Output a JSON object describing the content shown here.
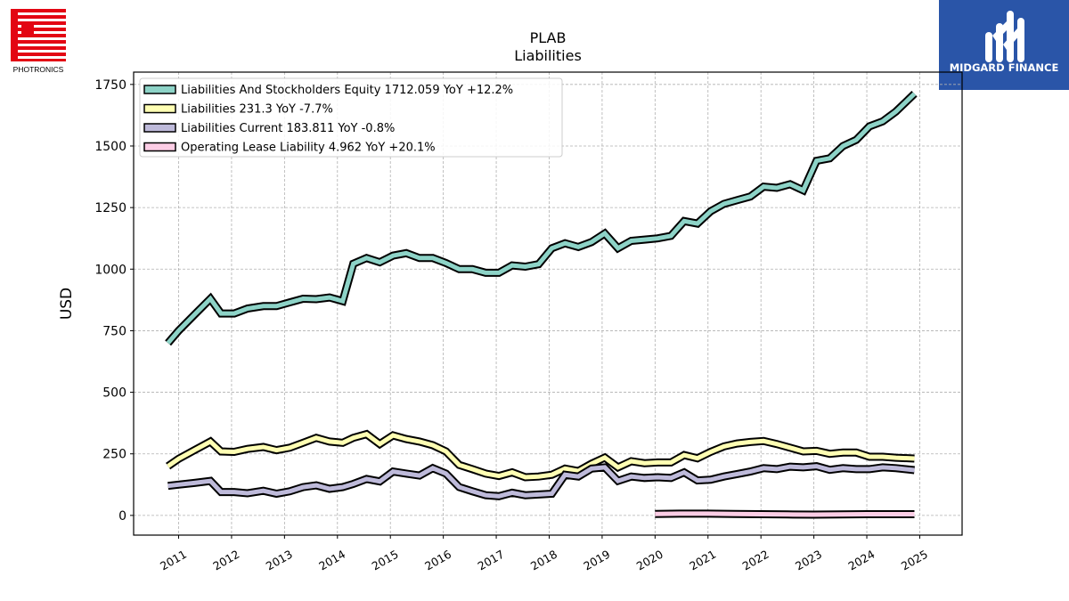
{
  "logos": {
    "left_text": "PHOTRONICS",
    "right_text": "MIDGARD FINANCE"
  },
  "chart_data": {
    "type": "line",
    "title": "PLAB",
    "subtitle": "Liabilities",
    "xlabel": "",
    "ylabel": "USD",
    "ylim": [
      -80,
      1800
    ],
    "xlim": [
      2010.15,
      2025.8
    ],
    "yticks": [
      0,
      250,
      500,
      750,
      1000,
      1250,
      1500,
      1750
    ],
    "xticks": [
      "2011",
      "2012",
      "2013",
      "2014",
      "2015",
      "2016",
      "2017",
      "2018",
      "2019",
      "2020",
      "2021",
      "2022",
      "2023",
      "2024",
      "2025"
    ],
    "grid": true,
    "legend_position": "top-left",
    "series": [
      {
        "name": "Liabilities And Stockholders Equity",
        "legend": "Liabilities And Stockholders Equity  1712.059 YoY +12.2%",
        "color": "#8dd3c7",
        "points": [
          [
            2010.8,
            700
          ],
          [
            2011.0,
            750
          ],
          [
            2011.3,
            815
          ],
          [
            2011.6,
            880
          ],
          [
            2011.8,
            820
          ],
          [
            2012.05,
            820
          ],
          [
            2012.3,
            840
          ],
          [
            2012.6,
            850
          ],
          [
            2012.85,
            850
          ],
          [
            2013.1,
            865
          ],
          [
            2013.35,
            880
          ],
          [
            2013.6,
            878
          ],
          [
            2013.85,
            885
          ],
          [
            2014.1,
            870
          ],
          [
            2014.3,
            1022
          ],
          [
            2014.55,
            1045
          ],
          [
            2014.8,
            1028
          ],
          [
            2015.05,
            1055
          ],
          [
            2015.3,
            1065
          ],
          [
            2015.55,
            1045
          ],
          [
            2015.8,
            1045
          ],
          [
            2016.05,
            1025
          ],
          [
            2016.3,
            1000
          ],
          [
            2016.55,
            1000
          ],
          [
            2016.8,
            985
          ],
          [
            2017.05,
            985
          ],
          [
            2017.3,
            1015
          ],
          [
            2017.55,
            1010
          ],
          [
            2017.8,
            1020
          ],
          [
            2018.05,
            1085
          ],
          [
            2018.3,
            1105
          ],
          [
            2018.55,
            1090
          ],
          [
            2018.8,
            1110
          ],
          [
            2019.05,
            1145
          ],
          [
            2019.3,
            1085
          ],
          [
            2019.55,
            1115
          ],
          [
            2019.8,
            1120
          ],
          [
            2020.05,
            1125
          ],
          [
            2020.3,
            1135
          ],
          [
            2020.55,
            1195
          ],
          [
            2020.8,
            1185
          ],
          [
            2021.05,
            1235
          ],
          [
            2021.3,
            1265
          ],
          [
            2021.55,
            1280
          ],
          [
            2021.8,
            1295
          ],
          [
            2022.05,
            1335
          ],
          [
            2022.3,
            1330
          ],
          [
            2022.55,
            1345
          ],
          [
            2022.8,
            1320
          ],
          [
            2023.05,
            1440
          ],
          [
            2023.3,
            1450
          ],
          [
            2023.55,
            1500
          ],
          [
            2023.8,
            1525
          ],
          [
            2024.05,
            1580
          ],
          [
            2024.3,
            1600
          ],
          [
            2024.55,
            1640
          ],
          [
            2024.9,
            1712
          ]
        ]
      },
      {
        "name": "Liabilities",
        "legend": "Liabilities  231.3 YoY -7.7%",
        "color": "#ffffb3",
        "points": [
          [
            2010.8,
            200
          ],
          [
            2011.0,
            230
          ],
          [
            2011.3,
            265
          ],
          [
            2011.6,
            300
          ],
          [
            2011.8,
            260
          ],
          [
            2012.05,
            258
          ],
          [
            2012.3,
            270
          ],
          [
            2012.6,
            278
          ],
          [
            2012.85,
            265
          ],
          [
            2013.1,
            275
          ],
          [
            2013.35,
            295
          ],
          [
            2013.6,
            315
          ],
          [
            2013.85,
            300
          ],
          [
            2014.1,
            295
          ],
          [
            2014.3,
            315
          ],
          [
            2014.55,
            330
          ],
          [
            2014.8,
            290
          ],
          [
            2015.05,
            325
          ],
          [
            2015.3,
            310
          ],
          [
            2015.55,
            300
          ],
          [
            2015.8,
            285
          ],
          [
            2016.05,
            260
          ],
          [
            2016.3,
            205
          ],
          [
            2016.55,
            188
          ],
          [
            2016.8,
            170
          ],
          [
            2017.05,
            160
          ],
          [
            2017.3,
            175
          ],
          [
            2017.55,
            155
          ],
          [
            2017.8,
            158
          ],
          [
            2018.05,
            165
          ],
          [
            2018.3,
            190
          ],
          [
            2018.55,
            180
          ],
          [
            2018.8,
            210
          ],
          [
            2019.05,
            235
          ],
          [
            2019.3,
            195
          ],
          [
            2019.55,
            220
          ],
          [
            2019.8,
            212
          ],
          [
            2020.05,
            215
          ],
          [
            2020.3,
            215
          ],
          [
            2020.55,
            245
          ],
          [
            2020.8,
            232
          ],
          [
            2021.05,
            258
          ],
          [
            2021.3,
            280
          ],
          [
            2021.55,
            292
          ],
          [
            2021.8,
            298
          ],
          [
            2022.05,
            302
          ],
          [
            2022.3,
            290
          ],
          [
            2022.55,
            275
          ],
          [
            2022.8,
            260
          ],
          [
            2023.05,
            262
          ],
          [
            2023.3,
            250
          ],
          [
            2023.55,
            255
          ],
          [
            2023.8,
            255
          ],
          [
            2024.05,
            238
          ],
          [
            2024.3,
            238
          ],
          [
            2024.55,
            234
          ],
          [
            2024.9,
            231
          ]
        ]
      },
      {
        "name": "Liabilities Current",
        "legend": "Liabilities Current  183.811 YoY -0.8%",
        "color": "#bebada",
        "points": [
          [
            2010.8,
            120
          ],
          [
            2011.0,
            125
          ],
          [
            2011.3,
            132
          ],
          [
            2011.6,
            140
          ],
          [
            2011.8,
            95
          ],
          [
            2012.05,
            95
          ],
          [
            2012.3,
            90
          ],
          [
            2012.6,
            100
          ],
          [
            2012.85,
            88
          ],
          [
            2013.1,
            98
          ],
          [
            2013.35,
            115
          ],
          [
            2013.6,
            122
          ],
          [
            2013.85,
            108
          ],
          [
            2014.1,
            115
          ],
          [
            2014.3,
            128
          ],
          [
            2014.55,
            148
          ],
          [
            2014.8,
            138
          ],
          [
            2015.05,
            178
          ],
          [
            2015.3,
            170
          ],
          [
            2015.55,
            162
          ],
          [
            2015.8,
            192
          ],
          [
            2016.05,
            170
          ],
          [
            2016.3,
            115
          ],
          [
            2016.55,
            98
          ],
          [
            2016.8,
            82
          ],
          [
            2017.05,
            78
          ],
          [
            2017.3,
            92
          ],
          [
            2017.55,
            82
          ],
          [
            2017.8,
            85
          ],
          [
            2018.05,
            88
          ],
          [
            2018.3,
            165
          ],
          [
            2018.55,
            158
          ],
          [
            2018.8,
            190
          ],
          [
            2019.05,
            195
          ],
          [
            2019.3,
            140
          ],
          [
            2019.55,
            158
          ],
          [
            2019.8,
            152
          ],
          [
            2020.05,
            155
          ],
          [
            2020.3,
            152
          ],
          [
            2020.55,
            175
          ],
          [
            2020.8,
            142
          ],
          [
            2021.05,
            145
          ],
          [
            2021.3,
            158
          ],
          [
            2021.55,
            168
          ],
          [
            2021.8,
            178
          ],
          [
            2022.05,
            192
          ],
          [
            2022.3,
            188
          ],
          [
            2022.55,
            198
          ],
          [
            2022.8,
            195
          ],
          [
            2023.05,
            200
          ],
          [
            2023.3,
            185
          ],
          [
            2023.55,
            192
          ],
          [
            2023.8,
            188
          ],
          [
            2024.05,
            188
          ],
          [
            2024.3,
            195
          ],
          [
            2024.55,
            192
          ],
          [
            2024.9,
            184
          ]
        ]
      },
      {
        "name": "Operating Lease Liability",
        "legend": "Operating Lease Liability  4.962 YoY +20.1%",
        "color": "#fccde5",
        "points": [
          [
            2020.0,
            6
          ],
          [
            2020.5,
            7
          ],
          [
            2021.0,
            7
          ],
          [
            2021.5,
            6
          ],
          [
            2022.0,
            5
          ],
          [
            2022.5,
            4
          ],
          [
            2023.0,
            3
          ],
          [
            2023.5,
            4
          ],
          [
            2024.0,
            5
          ],
          [
            2024.5,
            5
          ],
          [
            2024.9,
            5
          ]
        ]
      }
    ]
  }
}
